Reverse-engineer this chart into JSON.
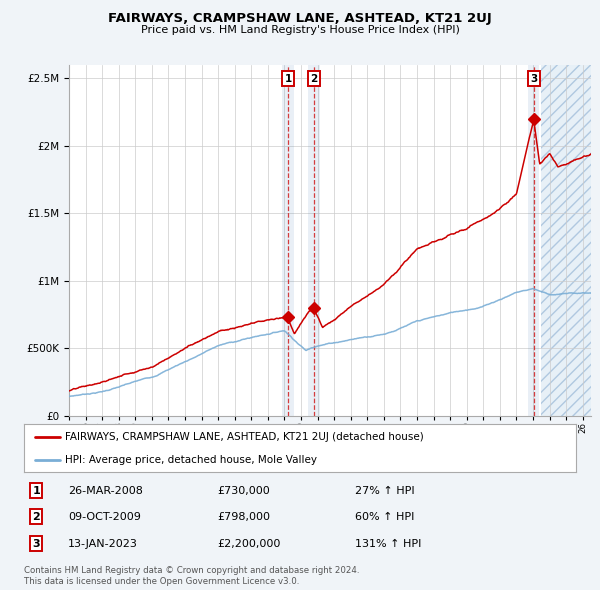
{
  "title": "FAIRWAYS, CRAMPSHAW LANE, ASHTEAD, KT21 2UJ",
  "subtitle": "Price paid vs. HM Land Registry's House Price Index (HPI)",
  "legend_line1": "FAIRWAYS, CRAMPSHAW LANE, ASHTEAD, KT21 2UJ (detached house)",
  "legend_line2": "HPI: Average price, detached house, Mole Valley",
  "transactions": [
    {
      "label": "1",
      "date": "26-MAR-2008",
      "price": 730000,
      "pct": "27%",
      "x_year": 2008.23
    },
    {
      "label": "2",
      "date": "09-OCT-2009",
      "price": 798000,
      "pct": "60%",
      "x_year": 2009.77
    },
    {
      "label": "3",
      "date": "13-JAN-2023",
      "price": 2200000,
      "pct": "131%",
      "x_year": 2023.04
    }
  ],
  "footnote1": "Contains HM Land Registry data © Crown copyright and database right 2024.",
  "footnote2": "This data is licensed under the Open Government Licence v3.0.",
  "ylim": [
    0,
    2600000
  ],
  "xlim_start": 1995.0,
  "xlim_end": 2026.5,
  "red_color": "#cc0000",
  "blue_color": "#7aaed6",
  "fig_bg_color": "#f0f4f8",
  "plot_bg_color": "#ffffff"
}
